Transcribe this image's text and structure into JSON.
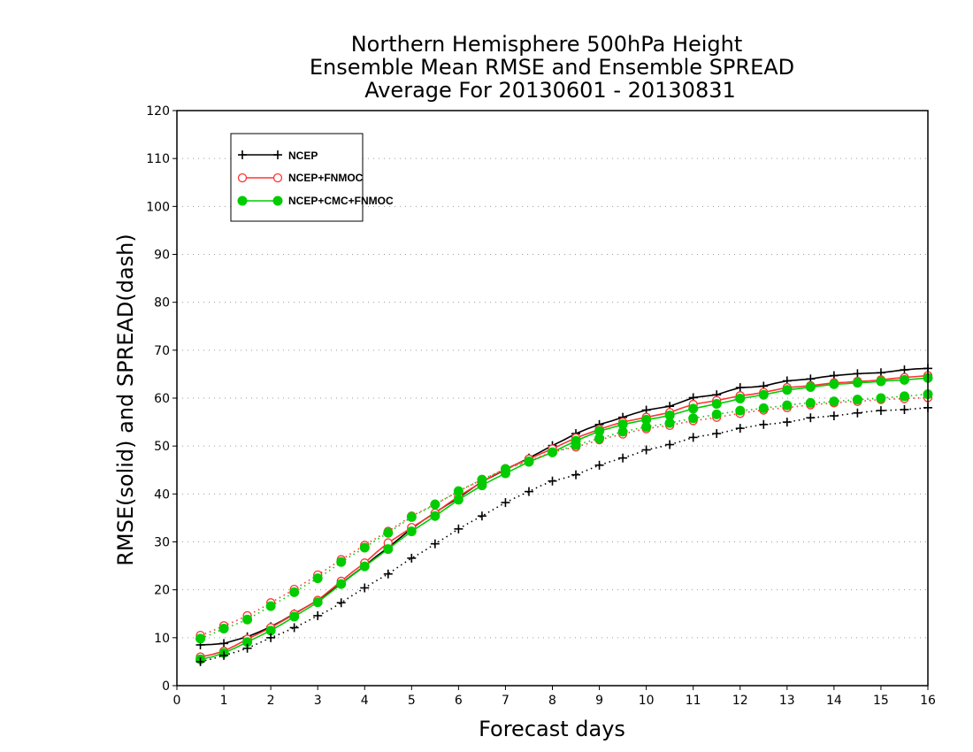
{
  "chart_data": {
    "type": "line",
    "title_lines": [
      "Northern Hemisphere 500hPa Height",
      "Ensemble Mean RMSE and Ensemble SPREAD",
      "Average For 20130601 - 20130831"
    ],
    "xlabel": "Forecast days",
    "ylabel": "RMSE(solid) and SPREAD(dash)",
    "xlim": [
      0,
      16
    ],
    "ylim": [
      0,
      120
    ],
    "xticks": [
      0,
      1,
      2,
      3,
      4,
      5,
      6,
      7,
      8,
      9,
      10,
      11,
      12,
      13,
      14,
      15,
      16
    ],
    "yticks": [
      0,
      10,
      20,
      30,
      40,
      50,
      60,
      70,
      80,
      90,
      100,
      110,
      120
    ],
    "grid": true,
    "legend_position": "top-left",
    "x": [
      0.5,
      0.75,
      1,
      1.25,
      1.5,
      1.75,
      2,
      2.25,
      2.5,
      2.75,
      3,
      3.25,
      3.5,
      3.75,
      4,
      4.25,
      4.5,
      4.75,
      5,
      5.25,
      5.5,
      5.75,
      6,
      6.25,
      6.5,
      6.75,
      7,
      7.25,
      7.5,
      7.75,
      8,
      8.25,
      8.5,
      8.75,
      9,
      9.25,
      9.5,
      9.75,
      10,
      10.25,
      10.5,
      10.75,
      11,
      11.25,
      11.5,
      11.75,
      12,
      12.25,
      12.5,
      12.75,
      13,
      13.25,
      13.5,
      13.75,
      14,
      14.25,
      14.5,
      14.75,
      15,
      15.25,
      15.5,
      15.75,
      16
    ],
    "series": [
      {
        "name": "NCEP",
        "style": "solid",
        "color": "#000000",
        "marker": "plus",
        "values": [
          8.5,
          8.6,
          8.8,
          9.5,
          10.2,
          11.2,
          12.3,
          13.6,
          15.0,
          16.4,
          17.8,
          19.5,
          21.3,
          23.2,
          25.0,
          27.0,
          28.8,
          30.8,
          32.8,
          34.5,
          36.1,
          37.7,
          39.2,
          40.9,
          42.6,
          43.8,
          45.1,
          46.3,
          47.5,
          48.8,
          50.1,
          51.3,
          52.6,
          53.6,
          54.5,
          55.2,
          56.0,
          56.8,
          57.5,
          57.9,
          58.3,
          59.2,
          60.1,
          60.4,
          60.7,
          61.5,
          62.2,
          62.3,
          62.5,
          63.1,
          63.6,
          63.8,
          64.0,
          64.4,
          64.7,
          64.9,
          65.1,
          65.2,
          65.3,
          65.6,
          65.9,
          66.1,
          66.2
        ]
      },
      {
        "name": "NCEP+FNMOC",
        "style": "solid",
        "color": "#ff3333",
        "marker": "open-circle",
        "values": [
          6.0,
          6.5,
          7.2,
          8.4,
          9.7,
          10.9,
          12.1,
          13.5,
          14.9,
          16.4,
          17.8,
          19.8,
          21.8,
          23.8,
          25.6,
          27.8,
          29.8,
          31.4,
          33.0,
          34.5,
          36.0,
          37.8,
          39.5,
          41.0,
          42.5,
          43.9,
          45.2,
          46.3,
          47.3,
          48.4,
          49.4,
          50.6,
          51.7,
          52.6,
          53.5,
          54.3,
          55.0,
          55.5,
          56.0,
          56.5,
          57.0,
          57.9,
          58.7,
          59.1,
          59.5,
          60.0,
          60.5,
          60.8,
          61.2,
          61.7,
          62.2,
          62.4,
          62.6,
          62.9,
          63.2,
          63.3,
          63.5,
          63.6,
          63.8,
          64.1,
          64.3,
          64.5,
          64.7
        ]
      },
      {
        "name": "NCEP+CMC+FNMOC",
        "style": "solid",
        "color": "#00cc00",
        "marker": "filled-circle",
        "values": [
          5.5,
          6.0,
          6.8,
          7.9,
          9.1,
          10.3,
          11.5,
          12.9,
          14.4,
          15.9,
          17.4,
          19.3,
          21.2,
          23.1,
          24.9,
          26.7,
          28.5,
          30.4,
          32.2,
          33.8,
          35.4,
          37.1,
          38.8,
          40.3,
          41.8,
          43.1,
          44.3,
          45.5,
          46.7,
          47.7,
          48.7,
          49.9,
          51.1,
          52.1,
          53.1,
          53.8,
          54.5,
          55.0,
          55.5,
          55.9,
          56.4,
          57.1,
          57.8,
          58.3,
          58.8,
          59.3,
          59.9,
          60.3,
          60.7,
          61.2,
          61.7,
          62.0,
          62.3,
          62.6,
          62.9,
          63.0,
          63.2,
          63.3,
          63.5,
          63.7,
          63.8,
          64.0,
          64.2
        ]
      },
      {
        "name": "NCEP",
        "style": "dotted",
        "color": "#000000",
        "marker": "plus",
        "values": [
          5.0,
          5.6,
          6.3,
          7.0,
          7.8,
          8.9,
          10.0,
          11.0,
          12.1,
          13.3,
          14.6,
          15.8,
          17.3,
          18.9,
          20.4,
          21.9,
          23.3,
          25.0,
          26.6,
          28.0,
          29.6,
          31.1,
          32.7,
          34.1,
          35.4,
          36.8,
          38.2,
          39.4,
          40.5,
          41.7,
          42.7,
          43.3,
          44.0,
          45.0,
          46.0,
          46.8,
          47.5,
          48.3,
          49.2,
          49.7,
          50.3,
          51.0,
          51.8,
          52.2,
          52.6,
          53.1,
          53.7,
          54.1,
          54.5,
          54.7,
          55.0,
          55.4,
          55.9,
          56.1,
          56.3,
          56.6,
          56.9,
          57.2,
          57.4,
          57.5,
          57.6,
          57.8,
          58.0
        ]
      },
      {
        "name": "NCEP+FNMOC",
        "style": "dotted",
        "color": "#ff3333",
        "marker": "open-circle",
        "values": [
          10.5,
          11.4,
          12.5,
          13.5,
          14.6,
          15.9,
          17.3,
          18.7,
          20.1,
          21.6,
          23.1,
          24.7,
          26.3,
          27.8,
          29.3,
          30.8,
          32.2,
          33.8,
          35.4,
          36.6,
          37.9,
          39.2,
          40.6,
          41.8,
          42.9,
          44.1,
          45.3,
          46.1,
          46.8,
          47.8,
          48.7,
          49.3,
          49.8,
          50.5,
          51.3,
          51.9,
          52.5,
          53.1,
          53.6,
          54.0,
          54.3,
          54.8,
          55.3,
          55.6,
          56.0,
          56.4,
          56.8,
          57.2,
          57.5,
          57.8,
          58.0,
          58.3,
          58.6,
          58.8,
          59.0,
          59.2,
          59.3,
          59.5,
          59.7,
          59.8,
          59.9,
          60.0,
          60.1
        ]
      },
      {
        "name": "NCEP+CMC+FNMOC",
        "style": "dotted",
        "color": "#00cc00",
        "marker": "filled-circle",
        "values": [
          9.8,
          10.8,
          11.9,
          12.8,
          13.8,
          15.2,
          16.6,
          18.0,
          19.5,
          21.0,
          22.4,
          24.0,
          25.8,
          27.3,
          28.8,
          30.4,
          31.9,
          33.5,
          35.2,
          36.5,
          37.8,
          39.2,
          40.6,
          41.8,
          43.0,
          44.1,
          45.2,
          46.0,
          46.8,
          47.7,
          48.7,
          49.4,
          50.2,
          50.9,
          51.6,
          52.3,
          53.0,
          53.5,
          54.0,
          54.4,
          54.8,
          55.3,
          55.8,
          56.2,
          56.6,
          57.0,
          57.4,
          57.6,
          57.9,
          58.2,
          58.5,
          58.8,
          59.0,
          59.1,
          59.3,
          59.5,
          59.7,
          59.8,
          60.0,
          60.2,
          60.4,
          60.6,
          60.8
        ]
      }
    ]
  }
}
